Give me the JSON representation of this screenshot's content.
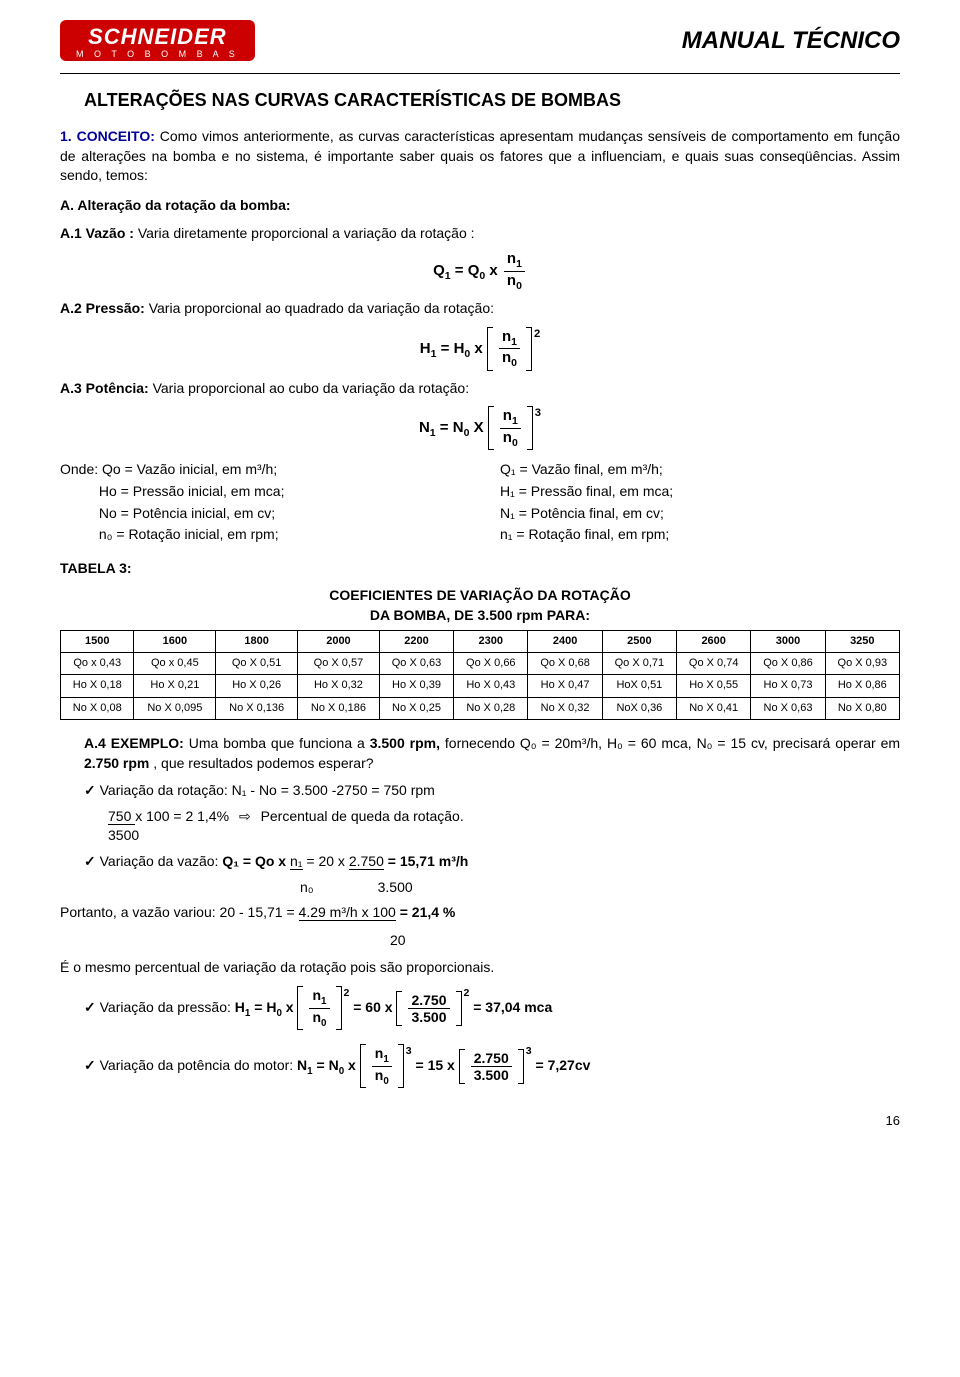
{
  "header": {
    "logo_main": "SCHNEIDER",
    "logo_sub": "M O T O B O M B A S",
    "doc_title": "MANUAL TÉCNICO",
    "logo_bg": "#cc0000",
    "logo_color": "#ffffff"
  },
  "section_title": "ALTERAÇÕES NAS CURVAS CARACTERÍSTICAS DE BOMBAS",
  "conceito": {
    "num": "1.",
    "label": "CONCEITO:",
    "text": " Como vimos anteriormente, as curvas características apresentam mudanças sensíveis de comportamento em função de alterações na bomba e no sistema, é importante saber quais os fatores que a influenciam, e quais suas conseqüências. Assim sendo, temos:"
  },
  "A": {
    "heading": "A.   Alteração da rotação da bomba:",
    "a1": {
      "label": "A.1 Vazão : ",
      "text": "Varia diretamente proporcional a variação da rotação :",
      "formula_lhs": "Q",
      "formula_rhs": "Q"
    },
    "a2": {
      "label": "A.2 Pressão: ",
      "text": "Varia proporcional ao quadrado da variação da rotação:",
      "formula_lhs": "H",
      "formula_rhs": "H",
      "exp": "2"
    },
    "a3": {
      "label": "A.3 Potência: ",
      "text": "Varia proporcional ao cubo da variação da rotação:",
      "formula_lhs": "N",
      "formula_rhs": "N",
      "exp": "3"
    }
  },
  "onde": {
    "left": [
      "Onde: Qo = Vazão inicial, em m³/h;",
      "          Ho = Pressão inicial, em mca;",
      "          No = Potência inicial, em cv;",
      "          n₀ = Rotação inicial, em rpm;"
    ],
    "right": [
      "Q₁ = Vazão final, em m³/h;",
      "H₁ = Pressão final, em mca;",
      "N₁ = Potência final, em cv;",
      "n₁ = Rotação final, em rpm;"
    ]
  },
  "tabela_label": "TABELA 3:",
  "table": {
    "title_line1": "COEFICIENTES DE VARIAÇÃO DA ROTAÇÃO",
    "title_line2": "DA BOMBA, DE 3.500 rpm PARA:",
    "headers": [
      "1500",
      "1600",
      "1800",
      "2000",
      "2200",
      "2300",
      "2400",
      "2500",
      "2600",
      "3000",
      "3250"
    ],
    "rows": [
      [
        "Qo x 0,43",
        "Qo x 0,45",
        "Qo X 0,51",
        "Qo X 0,57",
        "Qo X 0,63",
        "Qo X 0,66",
        "Qo X 0,68",
        "Qo X 0,71",
        "Qo X 0,74",
        "Qo X 0,86",
        "Qo X  0,93"
      ],
      [
        "Ho X 0,18",
        "Ho X 0,21",
        "Ho X 0,26",
        "Ho X 0,32",
        "Ho X 0,39",
        "Ho X 0,43",
        "Ho X 0,47",
        "HoX 0,51",
        "Ho X 0,55",
        "Ho X 0,73",
        "Ho X 0,86"
      ],
      [
        "No X 0,08",
        "No X 0,095",
        "No X 0,136",
        "No X 0,186",
        "No X 0,25",
        "No X 0,28",
        "No X 0,32",
        "NoX 0,36",
        "No X 0,41",
        "No X 0,63",
        "No X 0,80"
      ]
    ]
  },
  "a4": {
    "label": "A.4  EXEMPLO:",
    "text_before_bold": "  Uma  bomba que funciona a ",
    "bold1": "3.500 rpm,",
    "text_mid": " fornecendo Q₀ = 20m³/h, H₀ = 60 mca, N₀ = 15 cv, precisará operar em ",
    "bold2": "2.750 rpm",
    "text_after": ", que resultados podemos esperar?"
  },
  "checks": {
    "c1": "Variação da rotação: N₁  - No = 3.500 -2750 = 750 rpm",
    "c1_sub_top": "750   x 100 = 2 1,4%   ⇨   Percentual de queda da rotação.",
    "c1_sub_bot": "3500",
    "c2_pre": "Variação da vazão: ",
    "c2_bold": "Q₁ = Qo  x  ",
    "c2_n1": "n₁",
    "c2_eq1": " = 20 x ",
    "c2_frac_top": "2.750",
    "c2_frac_bot": "3.500",
    "c2_result": " = 15,71 m³/h",
    "c2_sub_no": "n₀",
    "portanto_top": "Portanto, a vazão variou: 20 - 15,71 = ",
    "portanto_frac_top": "4.29 m³/h x 100",
    "portanto_frac_bot": "20",
    "portanto_result": " = 21,4 %",
    "same_pct": "É o mesmo percentual de variação da rotação pois são proporcionais.",
    "c3_label": "Variação da pressão:    ",
    "c3_lhs": "H",
    "c3_mid": " =  60 x",
    "c3_frac_top": "2.750",
    "c3_frac_bot": "3.500",
    "c3_exp": "2",
    "c3_result": " =  37,04 mca",
    "c4_label": "Variação da potência do motor:   ",
    "c4_lhs": "N",
    "c4_mid": "  =   15 x",
    "c4_frac_top": "2.750",
    "c4_frac_bot": "3.500",
    "c4_exp": "3",
    "c4_result": "  =  7,27cv"
  },
  "page_number": "16",
  "colors": {
    "blue": "#000099",
    "text": "#000000",
    "bg": "#ffffff"
  }
}
